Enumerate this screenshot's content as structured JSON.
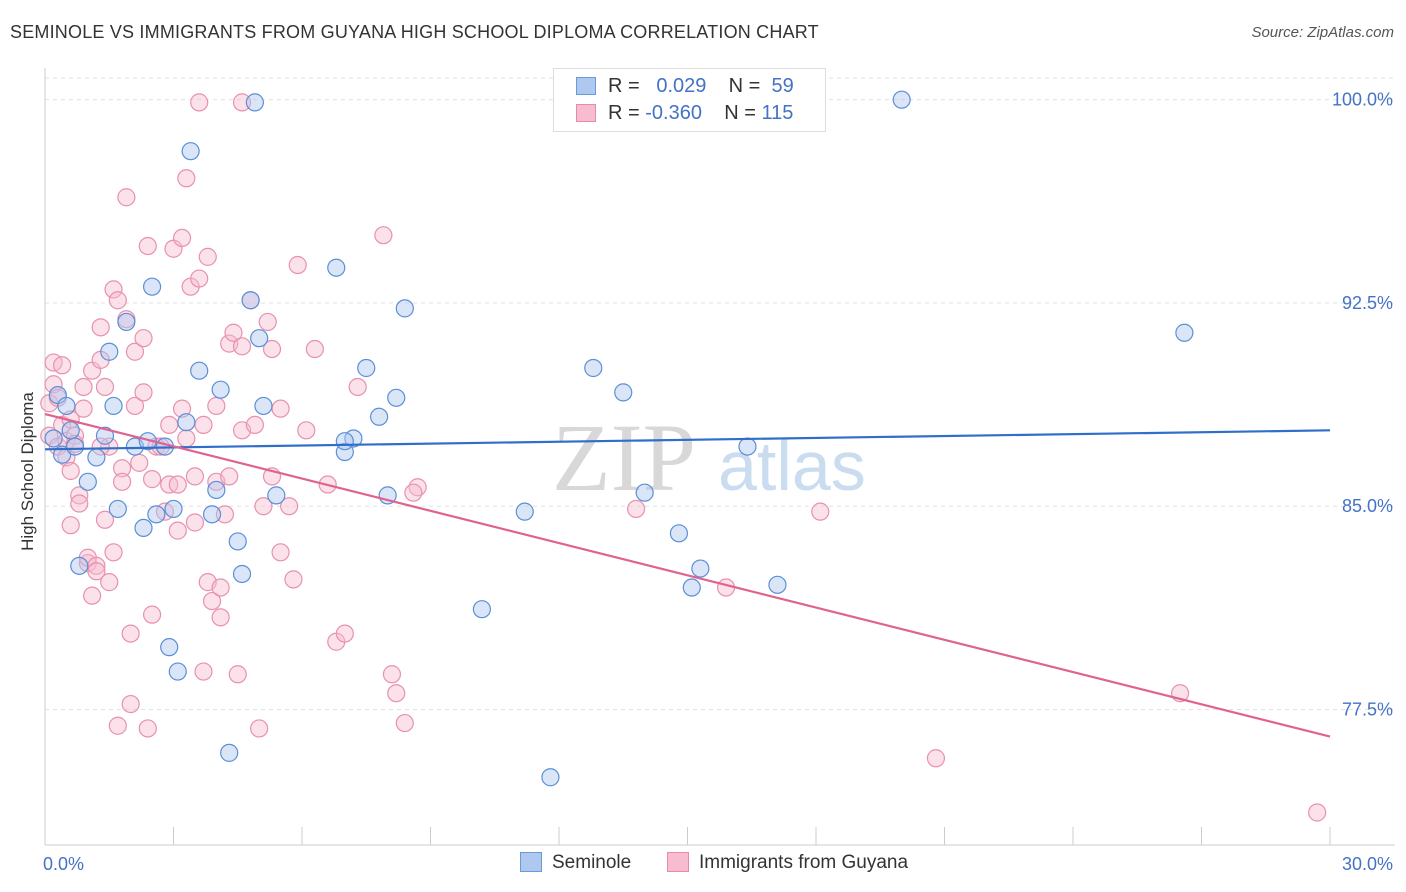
{
  "title": "SEMINOLE VS IMMIGRANTS FROM GUYANA HIGH SCHOOL DIPLOMA CORRELATION CHART",
  "source": "Source: ZipAtlas.com",
  "watermark": {
    "zip": "ZIP",
    "atlas": "atlas"
  },
  "legend": {
    "r_label": "R =",
    "n_label": "N =",
    "rows": [
      {
        "r": "0.029",
        "n": "59",
        "color": "#aec8ef",
        "border": "#6a9ad8"
      },
      {
        "r": "-0.360",
        "n": "115",
        "color": "#f7bcd0",
        "border": "#e88aab"
      }
    ]
  },
  "bottom_legend": [
    {
      "label": "Seminole",
      "color": "#aec8ef",
      "border": "#6a9ad8"
    },
    {
      "label": "Immigrants from Guyana",
      "color": "#f7bcd0",
      "border": "#e88aab"
    }
  ],
  "chart_data": {
    "type": "scatter",
    "ylabel": "High School Diploma",
    "xlim": [
      0,
      30
    ],
    "ylim": [
      72.5,
      100.8
    ],
    "x_tick_labels": [
      "0.0%",
      "30.0%"
    ],
    "y_ticks": [
      {
        "value": 100.0,
        "label": "100.0%"
      },
      {
        "value": 92.5,
        "label": "92.5%"
      },
      {
        "value": 85.0,
        "label": "85.0%"
      },
      {
        "value": 77.5,
        "label": "77.5%"
      }
    ],
    "grid": true,
    "series": [
      {
        "name": "Seminole",
        "color": "#5b8fd6",
        "fill": "#aec8ef",
        "trend": {
          "x": [
            0,
            30
          ],
          "y": [
            87.1,
            87.8
          ],
          "color": "#2f6fc9"
        },
        "points": [
          [
            0.2,
            87.5
          ],
          [
            0.3,
            89.1
          ],
          [
            0.4,
            86.9
          ],
          [
            0.5,
            88.7
          ],
          [
            0.6,
            87.8
          ],
          [
            0.7,
            87.2
          ],
          [
            0.8,
            82.8
          ],
          [
            1.0,
            85.9
          ],
          [
            1.2,
            86.8
          ],
          [
            1.4,
            87.6
          ],
          [
            1.5,
            90.7
          ],
          [
            1.6,
            88.7
          ],
          [
            1.7,
            84.9
          ],
          [
            1.9,
            91.8
          ],
          [
            2.1,
            87.2
          ],
          [
            2.3,
            84.2
          ],
          [
            2.4,
            87.4
          ],
          [
            2.5,
            93.1
          ],
          [
            2.6,
            84.7
          ],
          [
            2.8,
            87.2
          ],
          [
            2.9,
            79.8
          ],
          [
            3.0,
            84.9
          ],
          [
            3.1,
            78.9
          ],
          [
            3.3,
            88.1
          ],
          [
            3.4,
            98.1
          ],
          [
            3.6,
            90.0
          ],
          [
            3.9,
            84.7
          ],
          [
            4.0,
            85.6
          ],
          [
            4.1,
            89.3
          ],
          [
            4.3,
            75.9
          ],
          [
            4.5,
            83.7
          ],
          [
            4.6,
            82.5
          ],
          [
            4.8,
            92.6
          ],
          [
            5.0,
            91.2
          ],
          [
            5.1,
            88.7
          ],
          [
            5.4,
            85.4
          ],
          [
            4.9,
            99.9
          ],
          [
            6.8,
            93.8
          ],
          [
            7.0,
            87.0
          ],
          [
            7.2,
            87.5
          ],
          [
            7.0,
            87.4
          ],
          [
            7.5,
            90.1
          ],
          [
            7.8,
            88.3
          ],
          [
            8.0,
            85.4
          ],
          [
            8.2,
            89.0
          ],
          [
            8.4,
            92.3
          ],
          [
            10.2,
            81.2
          ],
          [
            11.2,
            84.8
          ],
          [
            11.8,
            75.0
          ],
          [
            12.8,
            90.1
          ],
          [
            13.5,
            89.2
          ],
          [
            14.0,
            85.5
          ],
          [
            14.8,
            84.0
          ],
          [
            15.1,
            82.0
          ],
          [
            15.3,
            82.7
          ],
          [
            16.4,
            87.2
          ],
          [
            17.1,
            82.1
          ],
          [
            20.0,
            100.0
          ],
          [
            26.6,
            91.4
          ]
        ]
      },
      {
        "name": "Immigrants from Guyana",
        "color": "#e891ae",
        "fill": "#f7bcd0",
        "trend": {
          "x": [
            0,
            30
          ],
          "y": [
            88.4,
            76.5
          ],
          "color": "#e0628e"
        },
        "points": [
          [
            0.1,
            87.6
          ],
          [
            0.1,
            88.8
          ],
          [
            0.2,
            89.5
          ],
          [
            0.2,
            90.3
          ],
          [
            0.3,
            87.2
          ],
          [
            0.3,
            89.0
          ],
          [
            0.4,
            90.2
          ],
          [
            0.4,
            88.0
          ],
          [
            0.5,
            87.4
          ],
          [
            0.5,
            86.8
          ],
          [
            0.6,
            84.3
          ],
          [
            0.6,
            86.3
          ],
          [
            0.7,
            87.6
          ],
          [
            0.7,
            87.3
          ],
          [
            0.8,
            85.4
          ],
          [
            0.8,
            85.1
          ],
          [
            0.9,
            88.6
          ],
          [
            0.9,
            89.4
          ],
          [
            1.0,
            82.9
          ],
          [
            1.0,
            83.1
          ],
          [
            1.1,
            81.7
          ],
          [
            1.1,
            90.0
          ],
          [
            1.2,
            82.8
          ],
          [
            1.2,
            82.6
          ],
          [
            1.3,
            90.4
          ],
          [
            1.3,
            91.6
          ],
          [
            1.4,
            84.5
          ],
          [
            1.4,
            89.4
          ],
          [
            1.5,
            82.2
          ],
          [
            1.5,
            87.2
          ],
          [
            1.6,
            93.0
          ],
          [
            1.6,
            83.3
          ],
          [
            1.7,
            92.6
          ],
          [
            1.7,
            76.9
          ],
          [
            1.8,
            86.4
          ],
          [
            1.8,
            85.9
          ],
          [
            1.9,
            91.9
          ],
          [
            1.9,
            96.4
          ],
          [
            2.0,
            77.7
          ],
          [
            2.0,
            80.3
          ],
          [
            2.1,
            90.7
          ],
          [
            2.1,
            88.7
          ],
          [
            2.3,
            89.2
          ],
          [
            2.3,
            91.2
          ],
          [
            2.4,
            94.6
          ],
          [
            2.4,
            76.8
          ],
          [
            2.5,
            86.0
          ],
          [
            2.5,
            81.0
          ],
          [
            2.6,
            87.2
          ],
          [
            2.7,
            87.2
          ],
          [
            2.8,
            84.8
          ],
          [
            2.9,
            85.8
          ],
          [
            2.9,
            88.0
          ],
          [
            3.0,
            94.5
          ],
          [
            3.1,
            85.8
          ],
          [
            3.1,
            84.1
          ],
          [
            3.2,
            94.9
          ],
          [
            3.2,
            88.6
          ],
          [
            3.3,
            97.1
          ],
          [
            3.3,
            87.5
          ],
          [
            3.4,
            93.1
          ],
          [
            3.5,
            84.4
          ],
          [
            3.5,
            86.1
          ],
          [
            3.6,
            93.4
          ],
          [
            3.7,
            88.0
          ],
          [
            3.7,
            78.9
          ],
          [
            3.8,
            94.2
          ],
          [
            3.8,
            82.2
          ],
          [
            3.9,
            81.5
          ],
          [
            4.0,
            85.9
          ],
          [
            4.0,
            88.7
          ],
          [
            4.1,
            82.0
          ],
          [
            4.1,
            80.9
          ],
          [
            4.2,
            84.7
          ],
          [
            4.3,
            91.0
          ],
          [
            4.3,
            86.1
          ],
          [
            4.4,
            91.4
          ],
          [
            4.5,
            78.8
          ],
          [
            4.6,
            90.9
          ],
          [
            4.6,
            87.8
          ],
          [
            4.8,
            92.6
          ],
          [
            4.9,
            88.0
          ],
          [
            5.0,
            76.8
          ],
          [
            5.1,
            85.0
          ],
          [
            5.2,
            91.8
          ],
          [
            5.3,
            90.8
          ],
          [
            5.3,
            86.1
          ],
          [
            5.5,
            88.6
          ],
          [
            5.5,
            83.3
          ],
          [
            5.7,
            85.0
          ],
          [
            5.8,
            82.3
          ],
          [
            5.9,
            93.9
          ],
          [
            6.1,
            87.8
          ],
          [
            6.3,
            90.8
          ],
          [
            6.6,
            85.8
          ],
          [
            6.8,
            80.0
          ],
          [
            7.0,
            80.3
          ],
          [
            7.3,
            89.4
          ],
          [
            7.9,
            95.0
          ],
          [
            8.1,
            78.8
          ],
          [
            8.2,
            78.1
          ],
          [
            8.4,
            77.0
          ],
          [
            8.7,
            85.7
          ],
          [
            4.6,
            99.9
          ],
          [
            3.6,
            99.9
          ],
          [
            8.6,
            85.5
          ],
          [
            13.8,
            84.9
          ],
          [
            15.9,
            82.0
          ],
          [
            18.1,
            84.8
          ],
          [
            20.8,
            75.7
          ],
          [
            26.5,
            78.1
          ],
          [
            29.7,
            73.7
          ],
          [
            1.3,
            87.2
          ],
          [
            0.6,
            88.2
          ],
          [
            2.2,
            86.6
          ]
        ]
      }
    ]
  }
}
